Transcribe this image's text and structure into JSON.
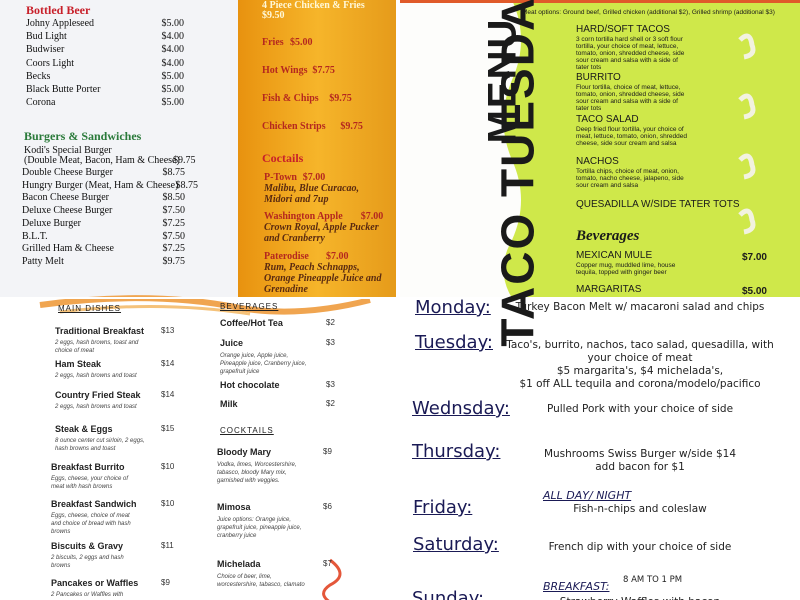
{
  "beer_menu": {
    "bottled_beer": {
      "heading": "Bottled Beer",
      "items": [
        {
          "name": "Johny Appleseed",
          "price": "$5.00"
        },
        {
          "name": "Bud Light",
          "price": "$4.00"
        },
        {
          "name": "Budwiser",
          "price": "$4.00"
        },
        {
          "name": "Coors Light",
          "price": "$4.00"
        },
        {
          "name": "Becks",
          "price": "$5.00"
        },
        {
          "name": "Black Butte Porter",
          "price": "$5.00"
        },
        {
          "name": "Corona",
          "price": "$5.00"
        }
      ]
    },
    "burgers": {
      "heading": "Burgers & Sandwiches",
      "special": {
        "name": "Kodi's Special Burger",
        "detail": "(Double Meat, Bacon, Ham & Cheese)",
        "price": "$9.75"
      },
      "items": [
        {
          "name": "Double Cheese Burger",
          "price": "$8.75"
        },
        {
          "name": "Hungry Burger (Meat, Ham & Cheese)",
          "price": "$8.75"
        },
        {
          "name": "Bacon Cheese Burger",
          "price": "$8.50"
        },
        {
          "name": "Deluxe Cheese Burger",
          "price": "$7.50"
        },
        {
          "name": "Deluxe Burger",
          "price": "$7.25"
        },
        {
          "name": "B.L.T.",
          "price": "$7.50"
        },
        {
          "name": "Grilled Ham & Cheese",
          "price": "$7.25"
        },
        {
          "name": "Patty Melt",
          "price": "$9.75"
        }
      ]
    },
    "sides": [
      {
        "name": "4 Piece Chicken & Fries",
        "price": "$9.50"
      },
      {
        "name": "Fries",
        "price": "$5.00"
      },
      {
        "name": "Hot Wings",
        "price": "$7.75"
      },
      {
        "name": "Fish & Chips",
        "price": "$9.75"
      },
      {
        "name": "Chicken Strips",
        "price": "$9.75"
      }
    ],
    "cocktails": {
      "heading": "Coctails",
      "items": [
        {
          "name": "P-Town",
          "price": "$7.00",
          "description": "Malibu, Blue Curacao, Midori and 7up"
        },
        {
          "name": "Washington Apple",
          "price": "$7.00",
          "description": "Crown Royal, Apple Pucker and Cranberry"
        },
        {
          "name": "Paterodise",
          "price": "$7.00",
          "description": "Rum, Peach Schnapps, Orange Pineapple Juice and Grenadine"
        }
      ]
    }
  },
  "taco_tuesday": {
    "title": "TACO TUESDAY",
    "title2": "MENU",
    "note": "Meat options: Ground beef, Grilled chicken (additional $2), Grilled shrimp (additional $3)",
    "items": [
      {
        "name": "HARD/SOFT TACOS",
        "description": "3 corn tortilla hard shell or 3 soft flour tortilla, your choice of meat, lettuce, tomato, onion, shredded cheese, side sour cream and salsa with a side of tater tots"
      },
      {
        "name": "BURRITO",
        "description": "Flour tortilla, choice of meat, lettuce, tomato, onion, shredded cheese, side sour cream and salsa with a side of tater tots"
      },
      {
        "name": "TACO SALAD",
        "description": "Deep fried flour tortilla, your choice of meat, lettuce, tomato, onion, shredded cheese, side sour cream and salsa"
      },
      {
        "name": "NACHOS",
        "description": "Tortilla chips, choice of meat, onion, tomato, nacho cheese, jalapeno, side sour cream and salsa"
      },
      {
        "name": "QUESADILLA W/SIDE TATER TOTS"
      }
    ],
    "beverages": {
      "heading": "Beverages",
      "items": [
        {
          "name": "MEXICAN MULE",
          "price": "$7.00",
          "description": "Copper mug, muddled lime, house tequila, topped with ginger beer"
        },
        {
          "name": "MARGARITAS",
          "price": "$5.00"
        }
      ]
    }
  },
  "breakfast_menu": {
    "main": {
      "heading": "MAIN DISHES",
      "items": [
        {
          "name": "Traditional Breakfast",
          "price": "$13",
          "description": "2 eggs, hash browns, toast and choice of meat"
        },
        {
          "name": "Ham Steak",
          "price": "$14",
          "description": "2 eggs, hash browns and toast"
        },
        {
          "name": "Country Fried Steak",
          "price": "$14",
          "description": "2 eggs, hash browns and toast"
        },
        {
          "name": "Steak & Eggs",
          "price": "$15",
          "description": "8 ounce center cut sirloin, 2 eggs, hash browns and toast"
        },
        {
          "name": "Breakfast Burrito",
          "price": "$10",
          "description": "Eggs, cheese, your choice of meat with hash browns"
        },
        {
          "name": "Breakfast Sandwich",
          "price": "$10",
          "description": "Eggs, cheese, choice of meat and choice of bread with hash browns"
        },
        {
          "name": "Biscuits & Gravy",
          "price": "$11",
          "description": "2 biscuits, 2 eggs and hash browns"
        },
        {
          "name": "Pancakes or Waffles",
          "price": "$9",
          "description": "2 Pancakes or Waffles with"
        }
      ]
    },
    "beverages": {
      "heading": "BEVERAGES",
      "items": [
        {
          "name": "Coffee/Hot Tea",
          "price": "$2"
        },
        {
          "name": "Juice",
          "price": "$3",
          "description": "Orange juice, Apple juice, Pineapple juice, Cranberry juice, grapefruit juice"
        },
        {
          "name": "Hot chocolate",
          "price": "$3"
        },
        {
          "name": "Milk",
          "price": "$2"
        }
      ]
    },
    "cocktails": {
      "heading": "COCKTAILS",
      "items": [
        {
          "name": "Bloody Mary",
          "price": "$9",
          "description": "Vodka, limes, Worcestershire, tabasco, bloody Mary mix, garnished with veggies."
        },
        {
          "name": "Mimosa",
          "price": "$6",
          "description": "Juice options: Orange juice, grapefruit juice, pineapple juice, cranberry juice"
        },
        {
          "name": "Michelada",
          "price": "$7",
          "description": "Choice of beer, lime, worcestershire, tabasco, clamato"
        }
      ]
    }
  },
  "weekly_specials": [
    {
      "day": "Monday:",
      "lines": [
        "Turkey Bacon Melt w/ macaroni salad and chips"
      ]
    },
    {
      "day": "Tuesday:",
      "lines": [
        "Taco's, burrito, nachos, taco salad, quesadilla, with your choice of meat",
        "$5 margarita's, $4 michelada's,",
        "$1 off ALL tequila and corona/modelo/pacifico"
      ]
    },
    {
      "day": "Wednsday:",
      "lines": [
        "Pulled Pork with your choice of side"
      ]
    },
    {
      "day": "Thursday:",
      "lines": [
        "Mushrooms Swiss Burger w/side  $14",
        "add bacon for $1"
      ]
    },
    {
      "day": "Friday:",
      "note": "ALL DAY/ NIGHT",
      "lines": [
        "Fish-n-chips and coleslaw"
      ]
    },
    {
      "day": "Saturday:",
      "lines": [
        "French dip with your choice of side"
      ]
    },
    {
      "day": "Sunday:",
      "note": "BREAKFAST:",
      "hours": "8 AM TO 1 PM",
      "lines": [
        "Strawberry Waffles with bacon"
      ]
    }
  ]
}
